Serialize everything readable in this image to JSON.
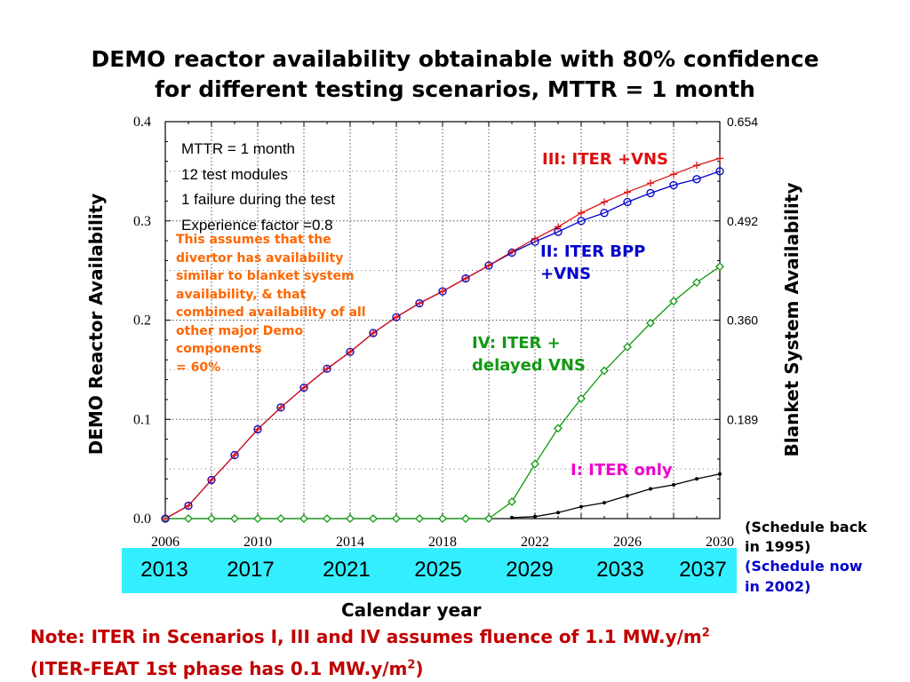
{
  "title_line1": "DEMO reactor availability obtainable with 80% confidence",
  "title_line2": "for different testing scenarios, MTTR = 1 month",
  "assumptions": [
    "MTTR = 1 month",
    "12 test modules",
    "1 failure during the test",
    "Experience factor =0.8"
  ],
  "divertor_note": [
    "This assumes that the",
    "divertor has availability",
    "similar to blanket system",
    "availability, & that",
    "combined availability of all",
    "other major Demo",
    "components",
    "= 60%"
  ],
  "scenario_labels": {
    "iii": "III: ITER +VNS",
    "ii_line1": "II: ITER BPP",
    "ii_line2": "+VNS",
    "iv_line1": "IV: ITER +",
    "iv_line2": "delayed VNS",
    "i": "I: ITER only"
  },
  "schedule_1995_line1": "(Schedule back",
  "schedule_1995_line2": "in 1995)",
  "schedule_2002_line1": "(Schedule now",
  "schedule_2002_line2": "in 2002)",
  "band_years": [
    "2013",
    "2017",
    "2021",
    "2025",
    "2029",
    "2033",
    "2037"
  ],
  "xlabel_text": "Calendar year",
  "note1_text": "Note: ITER in Scenarios I, III and IV assumes fluence of 1.1 MW.y/m",
  "note1_sup": "2",
  "note2_pre": "(ITER-FEAT 1st phase has 0.1 MW.y/m",
  "note2_sup": "2",
  "note2_post": ")",
  "colors": {
    "scenario_iii": "#dd1111",
    "scenario_ii": "#0000cc",
    "scenario_iv": "#119911",
    "scenario_i": "#000000",
    "divertor_note": "#ff6600",
    "scenario_i_label": "#ee00cc",
    "band": "#33eeff"
  },
  "chart_data": {
    "type": "line",
    "xlabel": "Calendar year",
    "ylabel": "DEMO Reactor Availability",
    "y2label": "Blanket System Availability",
    "xlim": [
      2006,
      2030
    ],
    "ylim": [
      0,
      0.4
    ],
    "x_ticks": [
      2006,
      2010,
      2014,
      2018,
      2022,
      2026,
      2030
    ],
    "y_ticks": [
      "0.0",
      "0.1",
      "0.2",
      "0.3",
      "0.4"
    ],
    "y2_ticks": [
      "0.189",
      "0.360",
      "0.492",
      "0.654"
    ],
    "grid": true,
    "series": [
      {
        "name": "III: ITER +VNS",
        "color": "#dd1111",
        "marker": "plus",
        "x": [
          2006,
          2007,
          2008,
          2009,
          2010,
          2011,
          2012,
          2013,
          2014,
          2015,
          2016,
          2017,
          2018,
          2019,
          2020,
          2021,
          2022,
          2023,
          2024,
          2025,
          2026,
          2027,
          2028,
          2029,
          2030
        ],
        "y": [
          0,
          0.013,
          0.039,
          0.064,
          0.09,
          0.112,
          0.132,
          0.151,
          0.168,
          0.187,
          0.203,
          0.217,
          0.229,
          0.242,
          0.255,
          0.269,
          0.282,
          0.294,
          0.308,
          0.319,
          0.329,
          0.338,
          0.347,
          0.356,
          0.363
        ]
      },
      {
        "name": "II: ITER BPP +VNS",
        "color": "#0000cc",
        "marker": "circle",
        "x": [
          2006,
          2007,
          2008,
          2009,
          2010,
          2011,
          2012,
          2013,
          2014,
          2015,
          2016,
          2017,
          2018,
          2019,
          2020,
          2021,
          2022,
          2023,
          2024,
          2025,
          2026,
          2027,
          2028,
          2029,
          2030
        ],
        "y": [
          0,
          0.013,
          0.039,
          0.064,
          0.09,
          0.112,
          0.132,
          0.151,
          0.168,
          0.187,
          0.203,
          0.217,
          0.229,
          0.242,
          0.255,
          0.268,
          0.279,
          0.289,
          0.3,
          0.308,
          0.319,
          0.328,
          0.336,
          0.342,
          0.35
        ]
      },
      {
        "name": "IV: ITER + delayed VNS",
        "color": "#119911",
        "marker": "diamond",
        "x": [
          2006,
          2007,
          2008,
          2009,
          2010,
          2011,
          2012,
          2013,
          2014,
          2015,
          2016,
          2017,
          2018,
          2019,
          2020,
          2021,
          2022,
          2023,
          2024,
          2025,
          2026,
          2027,
          2028,
          2029,
          2030
        ],
        "y": [
          0,
          0,
          0,
          0,
          0,
          0,
          0,
          0,
          0,
          0,
          0,
          0,
          0,
          0,
          0,
          0.017,
          0.055,
          0.091,
          0.121,
          0.149,
          0.173,
          0.197,
          0.219,
          0.238,
          0.254
        ]
      },
      {
        "name": "I: ITER only",
        "color": "#000000",
        "marker": "dot",
        "x": [
          2021,
          2022,
          2023,
          2024,
          2025,
          2026,
          2027,
          2028,
          2029,
          2030
        ],
        "y": [
          0.001,
          0.002,
          0.006,
          0.012,
          0.016,
          0.023,
          0.03,
          0.034,
          0.04,
          0.045
        ]
      }
    ]
  }
}
